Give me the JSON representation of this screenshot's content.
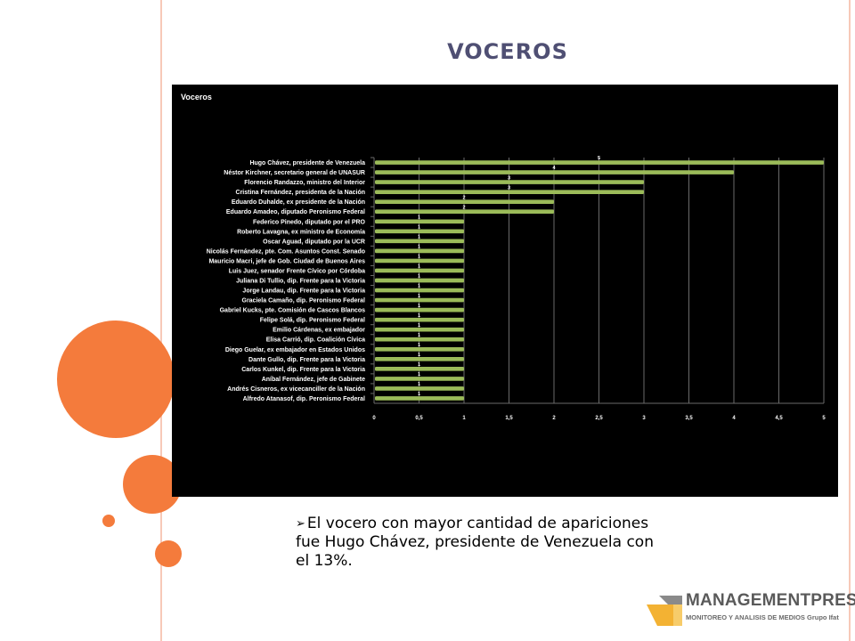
{
  "slide": {
    "title": "VOCEROS",
    "bullet_marker": "➢",
    "bullet_text": "El vocero con mayor cantidad de apariciones fue Hugo Chávez, presidente de Venezuela con el 13%."
  },
  "logo": {
    "name": "MANAGEMENTPRESS",
    "tagline": "MONITOREO Y ANALISIS DE MEDIOS Grupo Ifat"
  },
  "colors": {
    "accent": "#f47b3c",
    "title": "#4f4f73",
    "bar": "#9bbb59",
    "chart_background": "#000000"
  },
  "chart_data": {
    "type": "bar",
    "orientation": "horizontal",
    "title": "Voceros",
    "xlim": [
      0,
      5
    ],
    "x_ticks": [
      "0",
      "0,5",
      "1",
      "1,5",
      "2",
      "2,5",
      "3",
      "3,5",
      "4",
      "4,5",
      "5"
    ],
    "grid": true,
    "categories": [
      "Hugo Chávez, presidente de Venezuela",
      "Néstor Kirchner, secretario general de UNASUR",
      "Florencio Randazzo, ministro del Interior",
      "Cristina Fernández, presidenta de la Nación",
      "Eduardo Duhalde, ex presidente de la Nación",
      "Eduardo Amadeo, diputado Peronismo Federal",
      "Federico Pinedo, diputado por el PRO",
      "Roberto Lavagna, ex ministro de Economía",
      "Oscar Aguad, diputado por la UCR",
      "Nicolás Fernández, pte. Com. Asuntos Const. Senado",
      "Mauricio Macri, jefe de Gob. Ciudad de Buenos Aires",
      "Luis Juez, senador Frente Cívico por Córdoba",
      "Juliana Di Tullio, dip. Frente para la Victoria",
      "Jorge Landau, dip. Frente para la Victoria",
      "Graciela Camaño, dip. Peronismo Federal",
      "Gabriel Kucks, pte. Comisión de Cascos Blancos",
      "Felipe Solá, dip. Peronismo Federal",
      "Emilio Cárdenas, ex embajador",
      "Elisa Carrió, dip. Coalición Cívica",
      "Diego Guelar, ex embajador en Estados Unidos",
      "Dante Gullo, dip. Frente para la Victoria",
      "Carlos Kunkel, dip. Frente para la Victoria",
      "Aníbal Fernández, jefe de Gabinete",
      "Andrés Cisneros, ex vicecanciller de la Nación",
      "Alfredo Atanasof, dip. Peronismo Federal"
    ],
    "values": [
      5,
      4,
      3,
      3,
      2,
      2,
      1,
      1,
      1,
      1,
      1,
      1,
      1,
      1,
      1,
      1,
      1,
      1,
      1,
      1,
      1,
      1,
      1,
      1,
      1
    ]
  }
}
